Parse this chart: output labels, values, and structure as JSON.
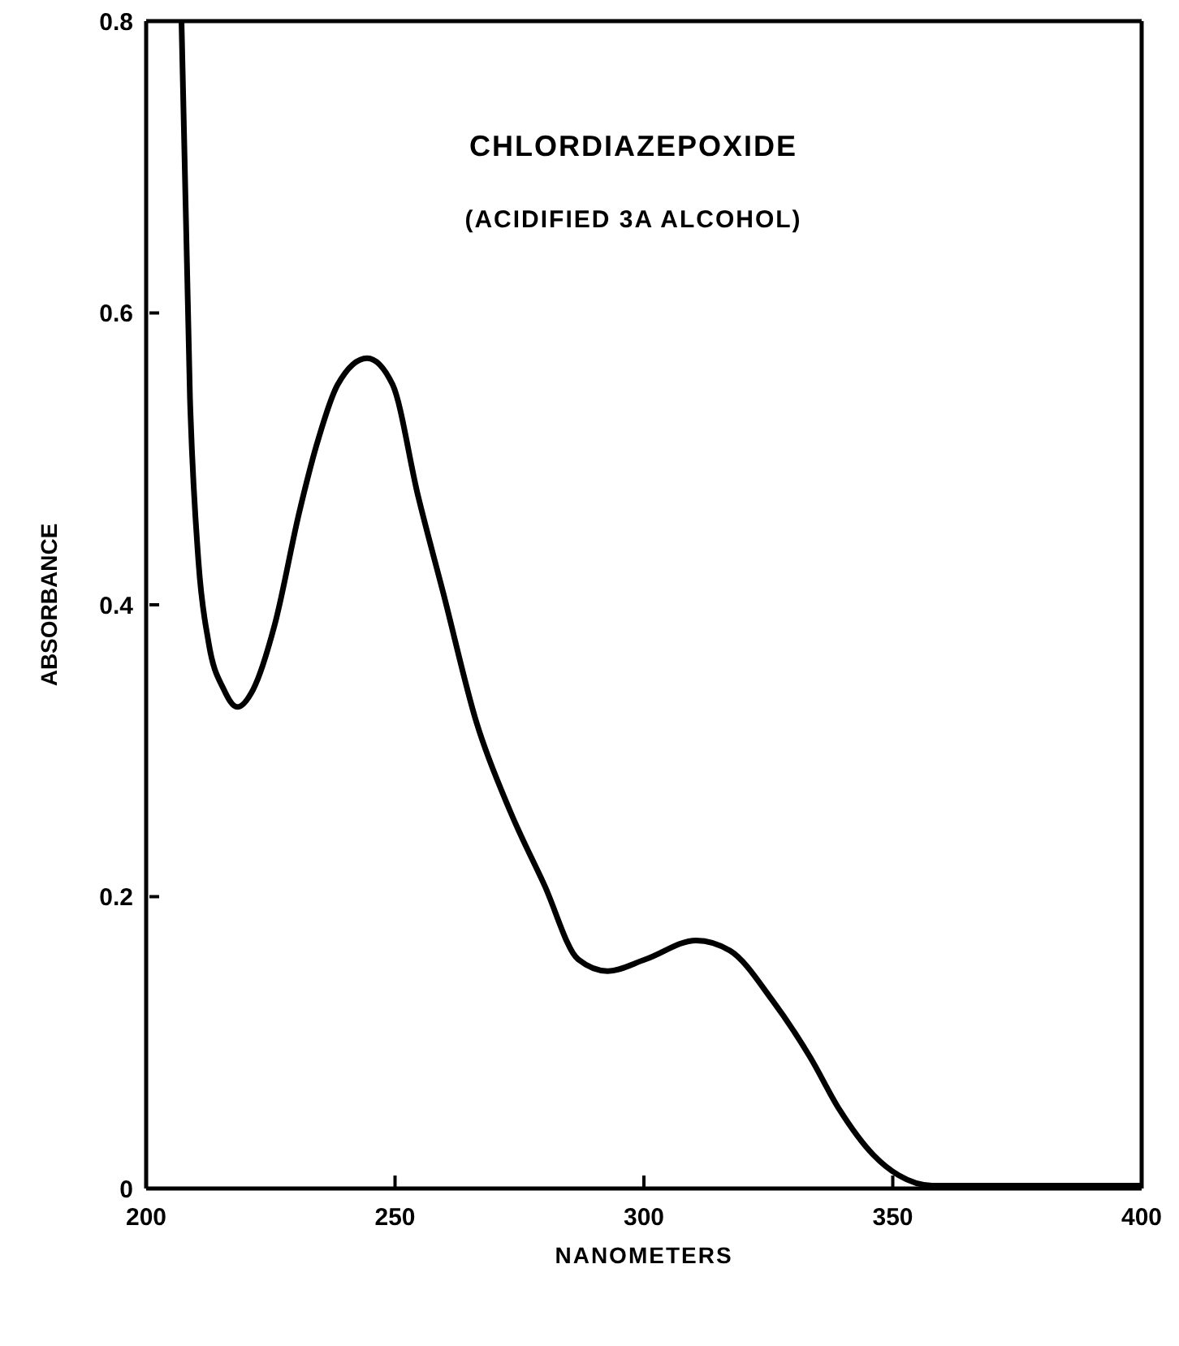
{
  "chart_data": {
    "type": "line",
    "title": "CHLORDIAZEPOXIDE",
    "subtitle": "(ACIDIFIED 3A ALCOHOL)",
    "xlabel": "NANOMETERS",
    "ylabel": "ABSORBANCE",
    "xlim": [
      200,
      400
    ],
    "xticks": [
      200,
      250,
      300,
      350,
      400
    ],
    "ylim": [
      0,
      0.8
    ],
    "yticks": [
      {
        "value": 0,
        "label": "0"
      },
      0.2,
      0.4,
      0.6,
      0.8
    ],
    "marker": "none",
    "line_style": "solid",
    "series": [
      {
        "color": "#000000",
        "x": [
          207.1,
          208.8,
          210.5,
          212.5,
          215.6,
          218.3,
          221.5,
          225.8,
          230.8,
          234.2,
          238.5,
          244.4,
          249.5,
          254.6,
          259.7,
          266.4,
          273.2,
          280,
          286.8,
          292.7,
          300.3,
          310.5,
          317.3,
          325.8,
          333.4,
          339.3,
          346.1,
          351.2,
          357.9,
          400
        ],
        "values": [
          0.8,
          0.542,
          0.43,
          0.375,
          0.342,
          0.33,
          0.342,
          0.386,
          0.464,
          0.509,
          0.551,
          0.569,
          0.551,
          0.475,
          0.408,
          0.319,
          0.258,
          0.208,
          0.157,
          0.149,
          0.157,
          0.17,
          0.163,
          0.129,
          0.09,
          0.054,
          0.023,
          0.009,
          0.002,
          0.002
        ]
      }
    ]
  }
}
